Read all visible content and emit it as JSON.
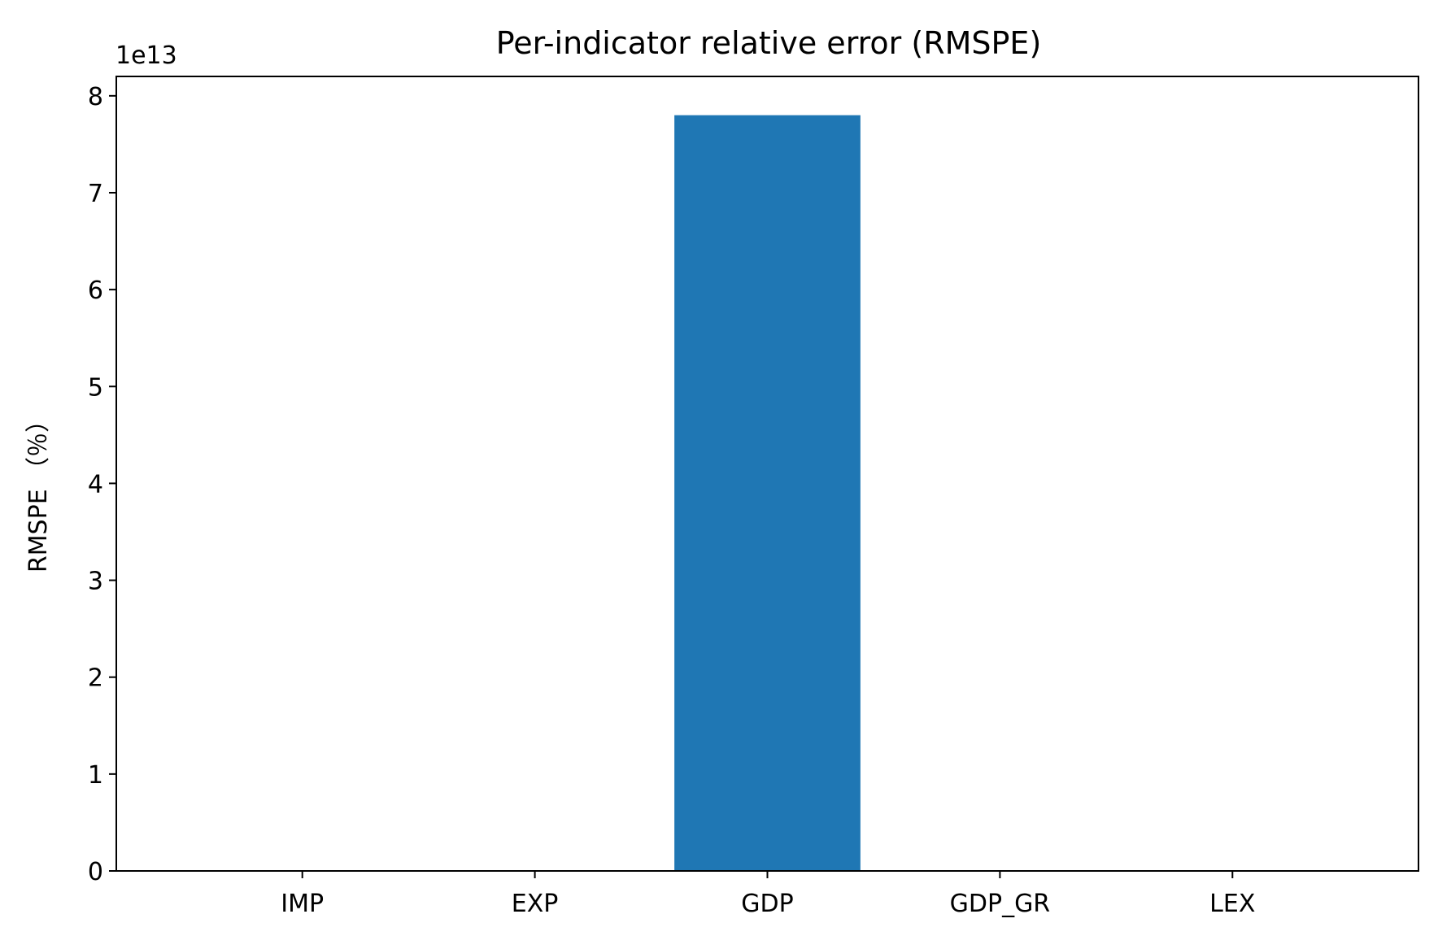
{
  "chart_data": {
    "type": "bar",
    "title": "Per-indicator relative error (RMSPE)",
    "xlabel": "",
    "ylabel": "RMSPE （％）",
    "categories": [
      "IMP",
      "EXP",
      "GDP",
      "GDP_GR",
      "LEX"
    ],
    "values": [
      0,
      0,
      78000000000000,
      0,
      0
    ],
    "ylim": [
      0,
      82000000000000
    ],
    "yticks": [
      0,
      1,
      2,
      3,
      4,
      5,
      6,
      7,
      8
    ],
    "y_multiplier_label": "1e13",
    "bar_color": "#1f77b4",
    "grid": false,
    "legend": "none"
  }
}
